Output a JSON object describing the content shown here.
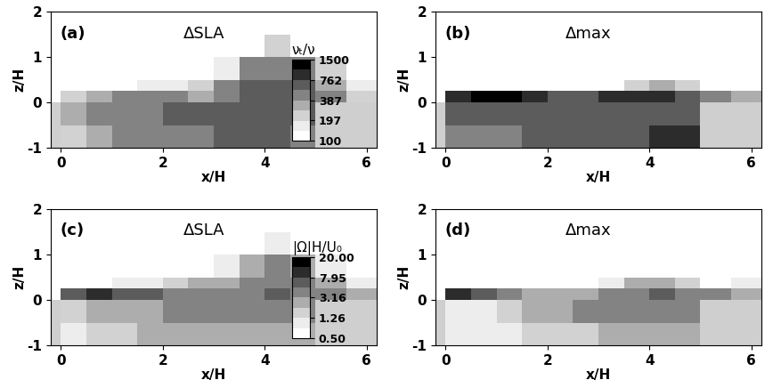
{
  "chart_data": [
    {
      "type": "heatmap",
      "title": "ΔSLA",
      "annotations": [
        "(a)"
      ],
      "x_label": "x/H",
      "y_label": "z/H",
      "xlim": [
        -0.2,
        6.2
      ],
      "ylim": [
        -1,
        2
      ],
      "xticks": [
        0,
        2,
        4,
        6
      ],
      "yticks": [
        -1,
        0,
        1,
        2
      ],
      "colorbar": {
        "label": "νₜ/ν",
        "range": [
          100,
          1500
        ],
        "ticks": [
          100,
          197,
          387,
          762,
          1500
        ]
      },
      "x_edges": [
        -0.2,
        0,
        0.5,
        1.0,
        1.5,
        2.0,
        2.5,
        3.0,
        3.5,
        4.0,
        4.5,
        5.0,
        5.6,
        6.2
      ],
      "z_edges": [
        -1,
        -0.5,
        0,
        0.25,
        0.5,
        1.0,
        1.5,
        2.0
      ],
      "cells": [
        [
          null,
          250,
          350,
          400,
          450,
          500,
          500,
          550,
          600,
          550,
          450,
          null,
          null
        ],
        [
          null,
          300,
          400,
          450,
          500,
          550,
          550,
          600,
          650,
          700,
          600,
          null,
          null
        ],
        [
          50,
          250,
          350,
          400,
          450,
          400,
          350,
          500,
          650,
          700,
          650,
          400,
          250
        ],
        [
          50,
          50,
          80,
          120,
          150,
          150,
          200,
          500,
          600,
          650,
          600,
          350,
          150
        ],
        [
          50,
          50,
          50,
          50,
          50,
          50,
          60,
          150,
          400,
          500,
          400,
          250,
          80
        ],
        [
          50,
          50,
          50,
          50,
          50,
          50,
          50,
          50,
          80,
          200,
          100,
          50,
          50
        ],
        [
          50,
          50,
          50,
          50,
          50,
          50,
          50,
          50,
          50,
          50,
          50,
          50,
          50
        ]
      ]
    },
    {
      "type": "heatmap",
      "title": "Δmax",
      "annotations": [
        "(b)"
      ],
      "x_label": "x/H",
      "y_label": "z/H",
      "xlim": [
        -0.2,
        6.2
      ],
      "ylim": [
        -1,
        2
      ],
      "xticks": [
        0,
        2,
        4,
        6
      ],
      "yticks": [
        -1,
        0,
        1,
        2
      ],
      "x_edges": [
        -0.2,
        0,
        0.5,
        1.0,
        1.5,
        2.0,
        2.5,
        3.0,
        3.5,
        4.0,
        4.5,
        5.0,
        5.6,
        6.2
      ],
      "z_edges": [
        -1,
        -0.5,
        0,
        0.25,
        0.5,
        1.0,
        1.5,
        2.0
      ],
      "cells": [
        [
          null,
          400,
          450,
          500,
          550,
          600,
          600,
          650,
          700,
          900,
          900,
          null,
          null
        ],
        [
          null,
          600,
          600,
          650,
          700,
          700,
          650,
          700,
          750,
          700,
          650,
          null,
          null
        ],
        [
          50,
          900,
          1100,
          1200,
          1000,
          700,
          600,
          800,
          900,
          800,
          700,
          400,
          300
        ],
        [
          50,
          50,
          50,
          50,
          50,
          50,
          50,
          100,
          200,
          300,
          200,
          80,
          100
        ],
        [
          50,
          50,
          50,
          50,
          50,
          50,
          50,
          50,
          50,
          50,
          50,
          50,
          50
        ],
        [
          50,
          50,
          50,
          50,
          50,
          50,
          50,
          50,
          50,
          50,
          50,
          50,
          50
        ],
        [
          50,
          50,
          50,
          50,
          50,
          50,
          50,
          50,
          50,
          50,
          50,
          50,
          50
        ]
      ]
    },
    {
      "type": "heatmap",
      "title": "ΔSLA",
      "annotations": [
        "(c)"
      ],
      "x_label": "x/H",
      "y_label": "z/H",
      "xlim": [
        -0.2,
        6.2
      ],
      "ylim": [
        -1,
        2
      ],
      "xticks": [
        0,
        2,
        4,
        6
      ],
      "yticks": [
        -1,
        0,
        1,
        2
      ],
      "colorbar": {
        "label": "|Ω|H/U₀",
        "range": [
          0.5,
          20
        ],
        "ticks": [
          {
            "value": 0.5,
            "label": "0.50"
          },
          1.26,
          3.16,
          7.95,
          {
            "value": 20,
            "label": "20.00"
          }
        ]
      },
      "x_edges": [
        -0.2,
        0,
        0.5,
        1.0,
        1.5,
        2.0,
        2.5,
        3.0,
        3.5,
        4.0,
        4.5,
        5.0,
        5.6,
        6.2
      ],
      "z_edges": [
        -1,
        -0.5,
        0,
        0.25,
        0.5,
        1.0,
        1.5,
        2.0
      ],
      "cells": [
        [
          null,
          1.0,
          1.5,
          1.5,
          2.0,
          2.0,
          2.5,
          2.5,
          3.0,
          3.0,
          2.5,
          null,
          null
        ],
        [
          null,
          1.5,
          2.0,
          2.5,
          3.0,
          4.0,
          4.0,
          5.0,
          5.0,
          4.5,
          4.0,
          null,
          null
        ],
        [
          0.3,
          6.0,
          8.0,
          7.0,
          6.0,
          5.0,
          5.0,
          5.0,
          5.0,
          6.0,
          5.0,
          4.0,
          2.0
        ],
        [
          0.3,
          0.3,
          0.5,
          0.8,
          1.0,
          1.5,
          2.0,
          3.0,
          4.0,
          5.0,
          4.0,
          2.0,
          1.0
        ],
        [
          0.3,
          0.3,
          0.3,
          0.3,
          0.3,
          0.3,
          0.5,
          1.0,
          2.5,
          3.5,
          2.0,
          1.0,
          0.5
        ],
        [
          0.3,
          0.3,
          0.3,
          0.3,
          0.3,
          0.3,
          0.3,
          0.3,
          0.3,
          0.8,
          0.3,
          0.3,
          0.3
        ],
        [
          0.3,
          0.3,
          0.3,
          0.3,
          0.3,
          0.3,
          0.3,
          0.3,
          0.3,
          0.3,
          0.3,
          0.3,
          0.3
        ]
      ]
    },
    {
      "type": "heatmap",
      "title": "Δmax",
      "annotations": [
        "(d)"
      ],
      "x_label": "x/H",
      "y_label": "z/H",
      "xlim": [
        -0.2,
        6.2
      ],
      "ylim": [
        -1,
        2
      ],
      "xticks": [
        0,
        2,
        4,
        6
      ],
      "yticks": [
        -1,
        0,
        1,
        2
      ],
      "x_edges": [
        -0.2,
        0,
        0.5,
        1.0,
        1.5,
        2.0,
        2.5,
        3.0,
        3.5,
        4.0,
        4.5,
        5.0,
        5.6,
        6.2
      ],
      "z_edges": [
        -1,
        -0.5,
        0,
        0.25,
        0.5,
        1.0,
        1.5,
        2.0
      ],
      "cells": [
        [
          null,
          0.8,
          1.0,
          1.2,
          1.5,
          1.5,
          1.8,
          2.0,
          2.5,
          2.5,
          2.0,
          null,
          null
        ],
        [
          null,
          1.0,
          1.2,
          1.5,
          2.0,
          3.0,
          3.5,
          4.5,
          5.0,
          5.0,
          4.0,
          null,
          null
        ],
        [
          0.3,
          8.0,
          6.0,
          4.0,
          3.0,
          3.0,
          3.0,
          4.0,
          5.0,
          6.0,
          5.0,
          5.0,
          3.0
        ],
        [
          0.3,
          0.3,
          0.3,
          0.3,
          0.4,
          0.4,
          0.5,
          1.0,
          2.0,
          2.5,
          1.5,
          0.5,
          1.0
        ],
        [
          0.3,
          0.3,
          0.3,
          0.3,
          0.3,
          0.3,
          0.3,
          0.3,
          0.3,
          0.3,
          0.3,
          0.3,
          0.3
        ],
        [
          0.3,
          0.3,
          0.3,
          0.3,
          0.3,
          0.3,
          0.3,
          0.3,
          0.3,
          0.3,
          0.3,
          0.3,
          0.3
        ],
        [
          0.3,
          0.3,
          0.3,
          0.3,
          0.3,
          0.3,
          0.3,
          0.3,
          0.3,
          0.3,
          0.3,
          0.3,
          0.3
        ]
      ]
    }
  ]
}
